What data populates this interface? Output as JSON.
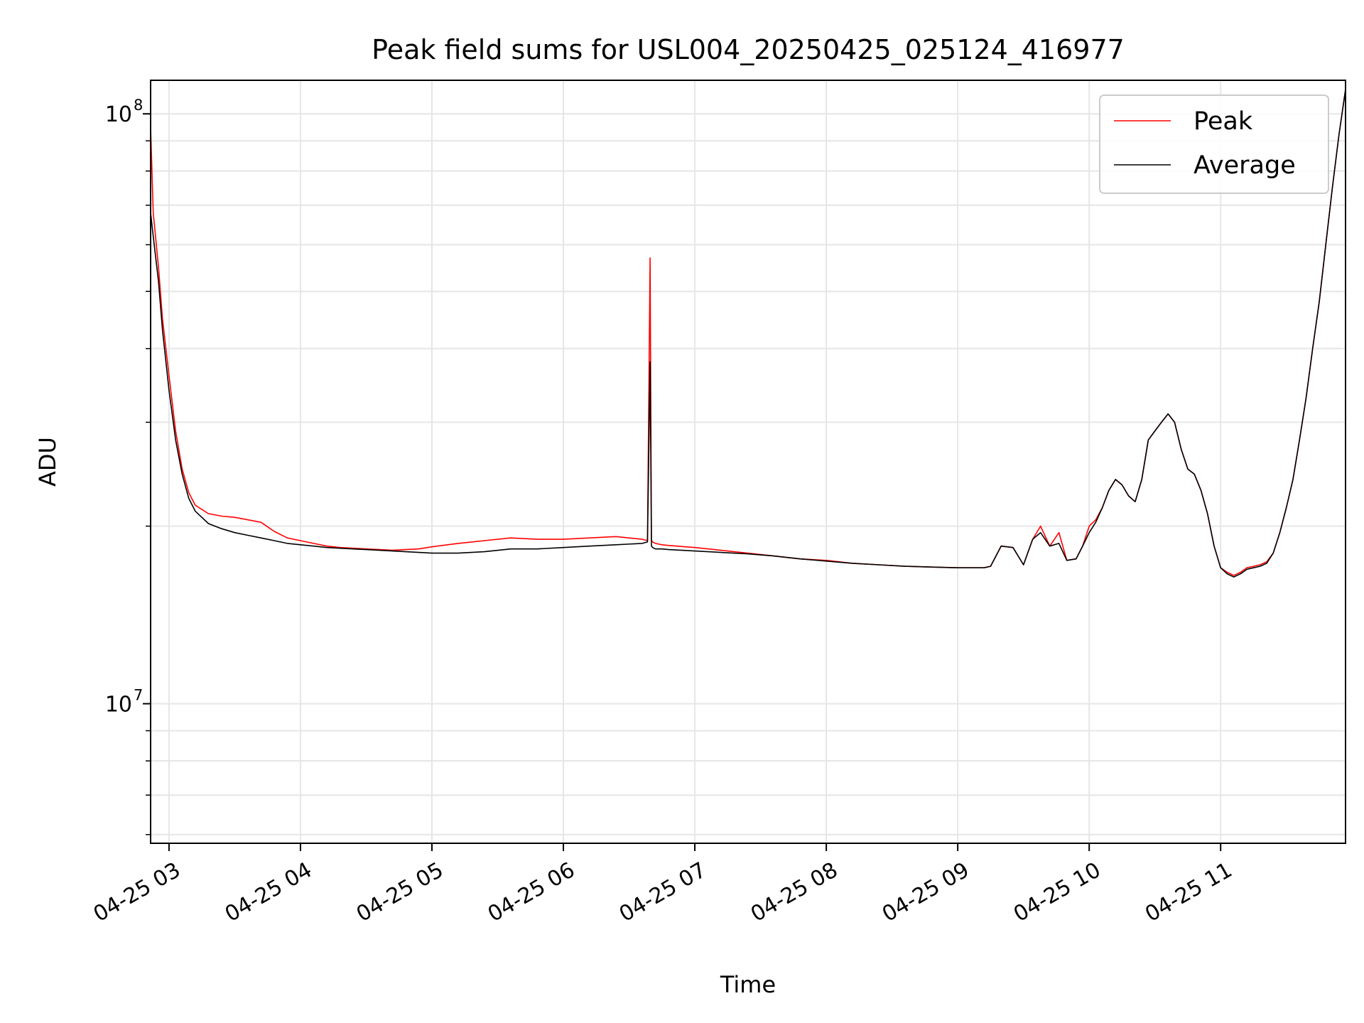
{
  "chart_data": {
    "type": "line",
    "title": "Peak field sums for USL004_20250425_025124_416977",
    "xlabel": "Time",
    "ylabel": "ADU",
    "x_unit": "hour of 2025-04-25",
    "xlim": [
      2.86,
      11.95
    ],
    "ylim": [
      5800000,
      114000000
    ],
    "yscale": "log",
    "grid": true,
    "legend_position": "top-right",
    "x_ticks": [
      {
        "value": 3,
        "label": "04-25 03"
      },
      {
        "value": 4,
        "label": "04-25 04"
      },
      {
        "value": 5,
        "label": "04-25 05"
      },
      {
        "value": 6,
        "label": "04-25 06"
      },
      {
        "value": 7,
        "label": "04-25 07"
      },
      {
        "value": 8,
        "label": "04-25 08"
      },
      {
        "value": 9,
        "label": "04-25 09"
      },
      {
        "value": 10,
        "label": "04-25 10"
      },
      {
        "value": 11,
        "label": "04-25 11"
      }
    ],
    "y_ticks": [
      {
        "value": 10000000,
        "base": "10",
        "exp": "7"
      },
      {
        "value": 100000000,
        "base": "10",
        "exp": "8"
      }
    ],
    "series": [
      {
        "name": "Peak",
        "color": "#ff0000",
        "x": [
          2.86,
          2.88,
          2.92,
          2.95,
          3.0,
          3.05,
          3.1,
          3.15,
          3.2,
          3.3,
          3.4,
          3.5,
          3.6,
          3.7,
          3.8,
          3.9,
          4.0,
          4.1,
          4.2,
          4.3,
          4.4,
          4.5,
          4.6,
          4.7,
          4.8,
          4.9,
          5.0,
          5.2,
          5.4,
          5.6,
          5.8,
          6.0,
          6.2,
          6.4,
          6.6,
          6.64,
          6.66,
          6.67,
          6.68,
          6.7,
          6.75,
          6.8,
          7.0,
          7.2,
          7.4,
          7.6,
          7.8,
          8.0,
          8.2,
          8.4,
          8.6,
          8.8,
          9.0,
          9.2,
          9.25,
          9.33,
          9.42,
          9.5,
          9.57,
          9.63,
          9.7,
          9.77,
          9.83,
          9.9,
          9.95,
          10.0,
          10.05,
          10.1,
          10.15,
          10.2,
          10.25,
          10.3,
          10.35,
          10.4,
          10.45,
          10.5,
          10.55,
          10.6,
          10.65,
          10.7,
          10.75,
          10.8,
          10.85,
          10.9,
          10.95,
          11.0,
          11.05,
          11.1,
          11.15,
          11.2,
          11.25,
          11.3,
          11.35,
          11.4,
          11.45,
          11.5,
          11.55,
          11.6,
          11.65,
          11.7,
          11.75,
          11.8,
          11.85,
          11.9,
          11.95
        ],
        "y": [
          95000000,
          68000000,
          55000000,
          45000000,
          36000000,
          29000000,
          25000000,
          22800000,
          21700000,
          21000000,
          20800000,
          20700000,
          20500000,
          20300000,
          19600000,
          19100000,
          18900000,
          18700000,
          18500000,
          18400000,
          18350000,
          18300000,
          18250000,
          18200000,
          18250000,
          18300000,
          18450000,
          18700000,
          18900000,
          19100000,
          19000000,
          19000000,
          19100000,
          19200000,
          19000000,
          18900000,
          57000000,
          18900000,
          18800000,
          18700000,
          18600000,
          18550000,
          18400000,
          18200000,
          18000000,
          17800000,
          17600000,
          17500000,
          17300000,
          17200000,
          17100000,
          17050000,
          17000000,
          17000000,
          17100000,
          18500000,
          18400000,
          17200000,
          19000000,
          20000000,
          18500000,
          19500000,
          17500000,
          17600000,
          18500000,
          20000000,
          20500000,
          21500000,
          23000000,
          24000000,
          23500000,
          22500000,
          22000000,
          24000000,
          28000000,
          29000000,
          30000000,
          31000000,
          30000000,
          27000000,
          25000000,
          24500000,
          23000000,
          21000000,
          18500000,
          17000000,
          16700000,
          16500000,
          16700000,
          17000000,
          17100000,
          17200000,
          17400000,
          18000000,
          19500000,
          21500000,
          24000000,
          28000000,
          33000000,
          40000000,
          48000000,
          60000000,
          75000000,
          92000000,
          110000000
        ]
      },
      {
        "name": "Average",
        "color": "#000000",
        "x": [
          2.86,
          2.88,
          2.92,
          2.95,
          3.0,
          3.05,
          3.1,
          3.15,
          3.2,
          3.3,
          3.4,
          3.5,
          3.6,
          3.7,
          3.8,
          3.9,
          4.0,
          4.1,
          4.2,
          4.3,
          4.4,
          4.5,
          4.6,
          4.7,
          4.8,
          4.9,
          5.0,
          5.2,
          5.4,
          5.6,
          5.8,
          6.0,
          6.2,
          6.4,
          6.6,
          6.64,
          6.66,
          6.67,
          6.68,
          6.7,
          6.75,
          6.8,
          7.0,
          7.2,
          7.4,
          7.6,
          7.8,
          8.0,
          8.2,
          8.4,
          8.6,
          8.8,
          9.0,
          9.2,
          9.25,
          9.33,
          9.42,
          9.5,
          9.57,
          9.63,
          9.7,
          9.77,
          9.83,
          9.9,
          9.95,
          10.0,
          10.05,
          10.1,
          10.15,
          10.2,
          10.25,
          10.3,
          10.35,
          10.4,
          10.45,
          10.5,
          10.55,
          10.6,
          10.65,
          10.7,
          10.75,
          10.8,
          10.85,
          10.9,
          10.95,
          11.0,
          11.05,
          11.1,
          11.15,
          11.2,
          11.25,
          11.3,
          11.35,
          11.4,
          11.45,
          11.5,
          11.55,
          11.6,
          11.65,
          11.7,
          11.75,
          11.8,
          11.85,
          11.9,
          11.95
        ],
        "y": [
          68000000,
          62000000,
          52000000,
          43000000,
          34000000,
          28000000,
          24500000,
          22300000,
          21200000,
          20200000,
          19800000,
          19500000,
          19300000,
          19100000,
          18900000,
          18700000,
          18600000,
          18500000,
          18400000,
          18350000,
          18300000,
          18250000,
          18200000,
          18150000,
          18100000,
          18050000,
          18000000,
          18000000,
          18100000,
          18300000,
          18300000,
          18400000,
          18500000,
          18600000,
          18700000,
          18800000,
          38000000,
          18500000,
          18400000,
          18300000,
          18300000,
          18250000,
          18150000,
          18050000,
          17950000,
          17800000,
          17600000,
          17450000,
          17300000,
          17200000,
          17100000,
          17050000,
          17000000,
          17000000,
          17100000,
          18500000,
          18400000,
          17200000,
          19000000,
          19500000,
          18500000,
          18700000,
          17500000,
          17600000,
          18500000,
          19500000,
          20300000,
          21500000,
          23000000,
          24000000,
          23500000,
          22500000,
          22000000,
          24000000,
          28000000,
          29000000,
          30000000,
          31000000,
          30000000,
          27000000,
          25000000,
          24500000,
          23000000,
          21000000,
          18500000,
          17000000,
          16600000,
          16400000,
          16600000,
          16900000,
          17000000,
          17100000,
          17300000,
          18000000,
          19500000,
          21500000,
          24000000,
          28000000,
          33000000,
          40000000,
          48000000,
          60000000,
          75000000,
          92000000,
          110000000
        ]
      }
    ]
  }
}
